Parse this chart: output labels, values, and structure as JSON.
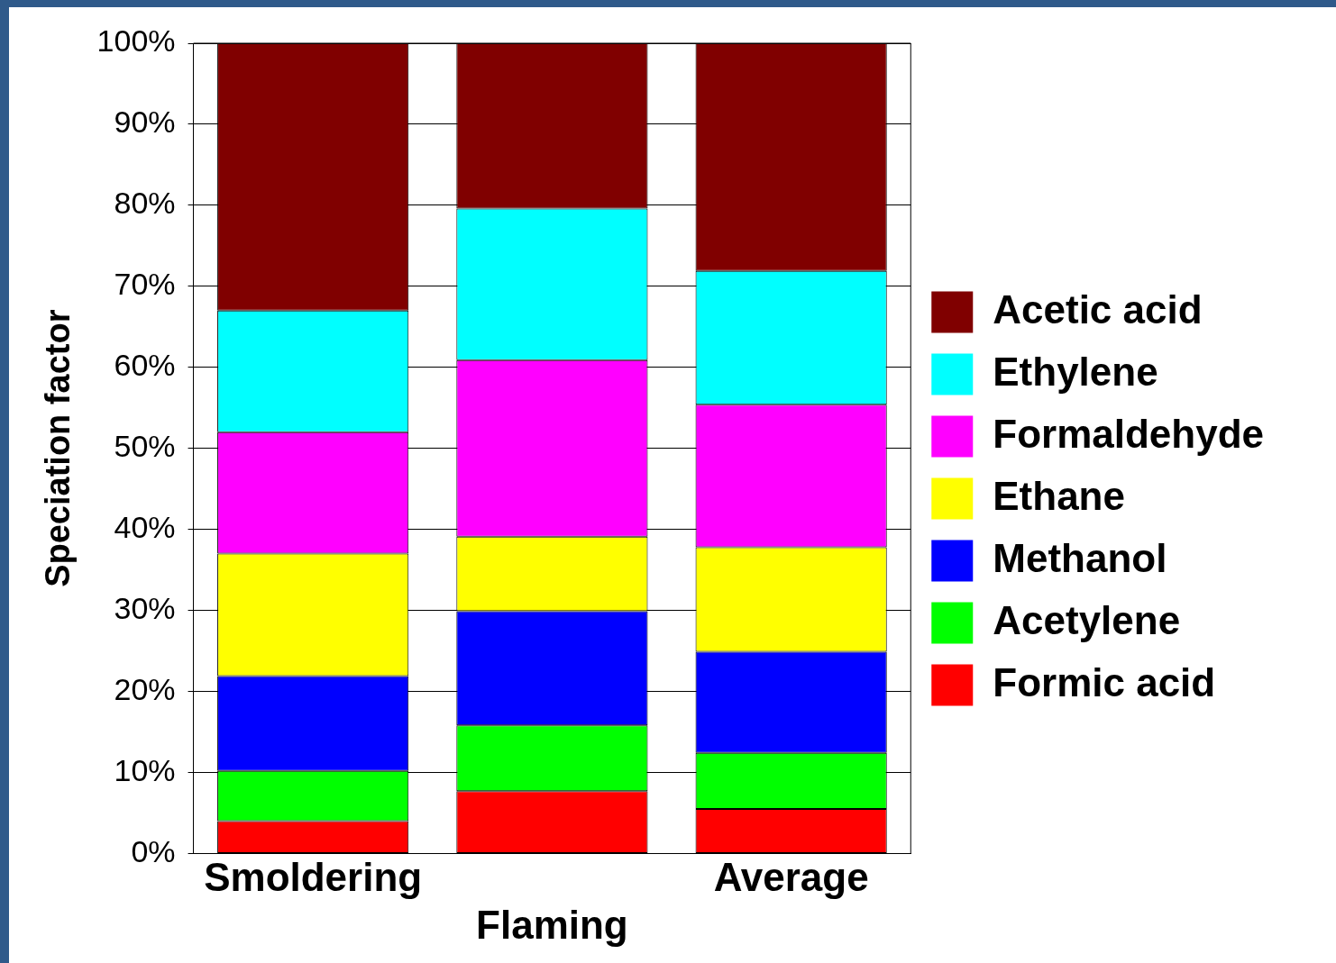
{
  "chart_data": {
    "type": "bar",
    "stacked": true,
    "ylabel": "Speciation factor",
    "categories": [
      "Smoldering",
      "Flaming",
      "Average"
    ],
    "series": [
      {
        "name": "Formic acid",
        "color": "#ff0000",
        "values": [
          4,
          7.7,
          5.5
        ]
      },
      {
        "name": "Acetylene",
        "color": "#00ff00",
        "values": [
          6.2,
          8.1,
          6.9
        ]
      },
      {
        "name": "Methanol",
        "color": "#0000ff",
        "values": [
          11.7,
          14.1,
          12.5
        ]
      },
      {
        "name": "Ethane",
        "color": "#ffff00",
        "values": [
          15.1,
          9.2,
          12.9
        ]
      },
      {
        "name": "Formaldehyde",
        "color": "#ff00ff",
        "values": [
          15,
          21.8,
          17.6
        ]
      },
      {
        "name": "Ethylene",
        "color": "#00ffff",
        "values": [
          15,
          18.7,
          16.5
        ]
      },
      {
        "name": "Acetic acid",
        "color": "#800000",
        "values": [
          33,
          20.4,
          28.1
        ]
      }
    ],
    "ylim": [
      0,
      100
    ],
    "yticks": [
      {
        "value": 0,
        "label": "0%"
      },
      {
        "value": 10,
        "label": "10%"
      },
      {
        "value": 20,
        "label": "20%"
      },
      {
        "value": 30,
        "label": "30%"
      },
      {
        "value": 40,
        "label": "40%"
      },
      {
        "value": 50,
        "label": "50%"
      },
      {
        "value": 60,
        "label": "60%"
      },
      {
        "value": 70,
        "label": "70%"
      },
      {
        "value": 80,
        "label": "80%"
      },
      {
        "value": 90,
        "label": "90%"
      },
      {
        "value": 100,
        "label": "100%"
      }
    ],
    "grid": "y",
    "legend": "right"
  }
}
